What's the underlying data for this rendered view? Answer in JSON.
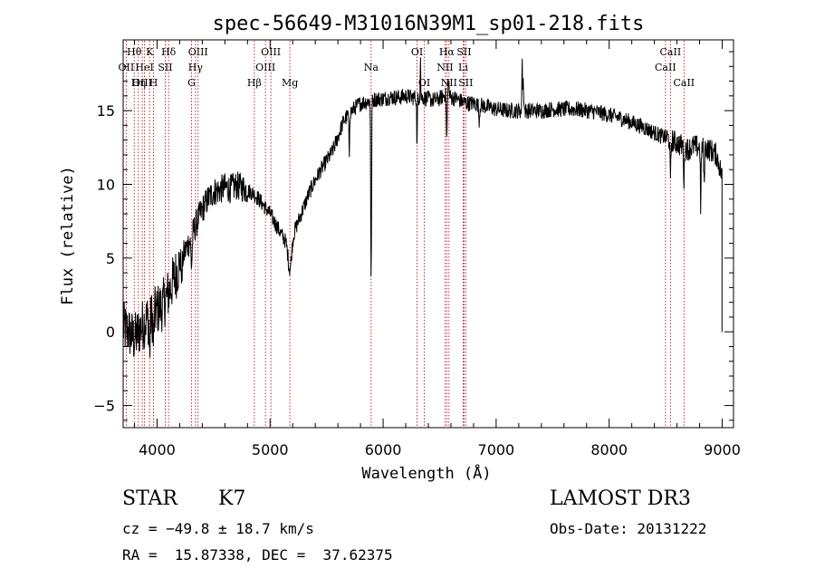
{
  "colors": {
    "spectrum": "#000000",
    "line_markers": "#b00000",
    "axes": "#000000",
    "background": "#ffffff"
  },
  "chart_data": {
    "type": "line",
    "title": "spec-56649-M31016N39M1_sp01-218.fits",
    "xlabel": "Wavelength (Å)",
    "ylabel": "Flux (relative)",
    "xlim": [
      3700,
      9100
    ],
    "ylim": [
      -6.5,
      19.8
    ],
    "xticks": [
      4000,
      5000,
      6000,
      7000,
      8000,
      9000
    ],
    "xtick_labels": [
      "4000",
      "5000",
      "6000",
      "7000",
      "8000",
      "9000"
    ],
    "yticks": [
      -5,
      0,
      5,
      10,
      15
    ],
    "ytick_labels": [
      "−5",
      "0",
      "5",
      "10",
      "15"
    ],
    "series": [
      {
        "name": "spectrum",
        "x": [
          3700,
          3750,
          3800,
          3850,
          3900,
          3950,
          4000,
          4050,
          4100,
          4150,
          4200,
          4250,
          4300,
          4350,
          4400,
          4450,
          4500,
          4550,
          4600,
          4650,
          4700,
          4750,
          4800,
          4850,
          4900,
          4950,
          5000,
          5050,
          5100,
          5150,
          5200,
          5250,
          5300,
          5350,
          5400,
          5450,
          5500,
          5550,
          5600,
          5650,
          5700,
          5750,
          5800,
          5850,
          5900,
          5950,
          6000,
          6050,
          6100,
          6150,
          6200,
          6250,
          6300,
          6350,
          6400,
          6450,
          6500,
          6550,
          6600,
          6650,
          6700,
          6750,
          6800,
          6900,
          7000,
          7100,
          7200,
          7300,
          7400,
          7500,
          7600,
          7700,
          7800,
          7900,
          8000,
          8100,
          8200,
          8300,
          8400,
          8450,
          8500,
          8550,
          8600,
          8650,
          8700,
          8750,
          8800,
          8850,
          8900,
          8950,
          9000
        ],
        "y": [
          0.3,
          0.0,
          -0.5,
          0.2,
          0.8,
          1.0,
          1.5,
          1.8,
          2.6,
          3.6,
          4.6,
          5.5,
          6.4,
          7.4,
          8.3,
          9.0,
          9.5,
          9.6,
          9.8,
          9.7,
          9.9,
          9.8,
          9.6,
          9.4,
          9.0,
          8.5,
          8.0,
          7.3,
          6.6,
          6.0,
          6.5,
          7.5,
          8.5,
          9.5,
          10.3,
          11.0,
          11.6,
          12.2,
          13.2,
          14.3,
          14.8,
          15.2,
          15.5,
          15.6,
          15.7,
          15.8,
          15.8,
          15.9,
          15.9,
          15.9,
          16.0,
          15.9,
          15.9,
          15.9,
          15.8,
          15.7,
          15.8,
          16.1,
          15.9,
          15.8,
          15.6,
          15.5,
          15.5,
          15.3,
          15.1,
          15.0,
          15.0,
          15.0,
          15.0,
          15.1,
          15.1,
          15.1,
          15.0,
          14.9,
          14.7,
          14.5,
          14.2,
          13.9,
          13.5,
          13.3,
          13.2,
          13.0,
          12.8,
          12.6,
          12.4,
          12.6,
          12.5,
          12.5,
          12.3,
          12.0,
          10.5
        ]
      }
    ],
    "spectral_lines": [
      {
        "label": "Hθ",
        "wavelength": 3798,
        "row": 1
      },
      {
        "label": "OII",
        "wavelength": 3727,
        "row": 2
      },
      {
        "label": "OIII",
        "wavelength": 3869,
        "row": 3
      },
      {
        "label": "K",
        "wavelength": 3934,
        "row": 1
      },
      {
        "label": "HeI",
        "wavelength": 3889,
        "row": 2
      },
      {
        "label": "Hη",
        "wavelength": 3835,
        "row": 3
      },
      {
        "label": "Hδ",
        "wavelength": 4102,
        "row": 1
      },
      {
        "label": "SII",
        "wavelength": 4072,
        "row": 2
      },
      {
        "label": "H",
        "wavelength": 3969,
        "row": 3
      },
      {
        "label": "OIII",
        "wavelength": 4363,
        "row": 1
      },
      {
        "label": "Hγ",
        "wavelength": 4340,
        "row": 2
      },
      {
        "label": "G",
        "wavelength": 4305,
        "row": 3
      },
      {
        "label": "OIII",
        "wavelength": 5007,
        "row": 1
      },
      {
        "label": "OIII",
        "wavelength": 4959,
        "row": 2
      },
      {
        "label": "Hβ",
        "wavelength": 4861,
        "row": 3
      },
      {
        "label": "Mg",
        "wavelength": 5175,
        "row": 3
      },
      {
        "label": "Na",
        "wavelength": 5894,
        "row": 2
      },
      {
        "label": "OI",
        "wavelength": 6300,
        "row": 1
      },
      {
        "label": "OI",
        "wavelength": 6364,
        "row": 3
      },
      {
        "label": "Hα",
        "wavelength": 6563,
        "row": 1
      },
      {
        "label": "NII",
        "wavelength": 6548,
        "row": 2
      },
      {
        "label": "NII",
        "wavelength": 6583,
        "row": 3
      },
      {
        "label": "SII",
        "wavelength": 6716,
        "row": 1
      },
      {
        "label": "Li",
        "wavelength": 6708,
        "row": 2
      },
      {
        "label": "SII",
        "wavelength": 6731,
        "row": 3
      },
      {
        "label": "CaII",
        "wavelength": 8542,
        "row": 1
      },
      {
        "label": "CaII",
        "wavelength": 8498,
        "row": 2
      },
      {
        "label": "CaII",
        "wavelength": 8662,
        "row": 3
      }
    ]
  },
  "info": {
    "object_class": "STAR",
    "subclass": "K7",
    "cz": "cz = −49.8 ± 18.7 km/s",
    "coords": "RA =  15.87338, DEC =  37.62375",
    "survey": "LAMOST DR3",
    "obs_date": "Obs-Date: 20131222"
  }
}
